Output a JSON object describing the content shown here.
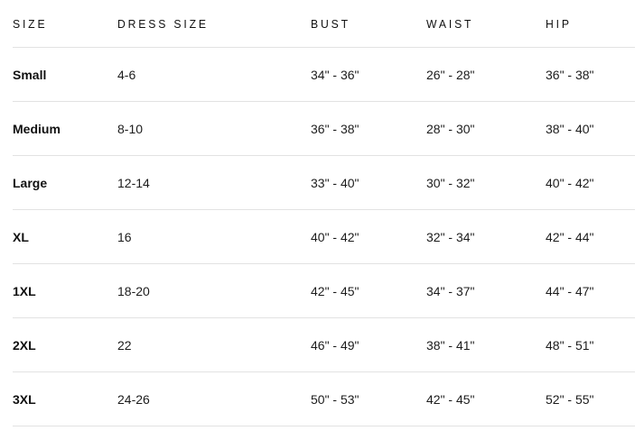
{
  "table": {
    "title": "size-chart",
    "colors": {
      "background": "#ffffff",
      "divider": "#e2e2e2",
      "header_text": "#111111",
      "body_text": "#1c1c1c"
    },
    "columns": {
      "size": "SIZE",
      "dress_size": "DRESS SIZE",
      "bust": "BUST",
      "waist": "WAIST",
      "hip": "HIP"
    },
    "rows": [
      {
        "size": "Small",
        "dress_size": "4-6",
        "bust": "34\" - 36\"",
        "waist": "26\" - 28\"",
        "hip": "36\" - 38\""
      },
      {
        "size": "Medium",
        "dress_size": "8-10",
        "bust": "36\" - 38\"",
        "waist": "28\" - 30\"",
        "hip": "38\" - 40\""
      },
      {
        "size": "Large",
        "dress_size": "12-14",
        "bust": "33\" - 40\"",
        "waist": "30\" - 32\"",
        "hip": "40\" - 42\""
      },
      {
        "size": "XL",
        "dress_size": "16",
        "bust": "40\" - 42\"",
        "waist": "32\" - 34\"",
        "hip": "42\" - 44\""
      },
      {
        "size": "1XL",
        "dress_size": "18-20",
        "bust": "42\" - 45\"",
        "waist": "34\" - 37\"",
        "hip": "44\" - 47\""
      },
      {
        "size": "2XL",
        "dress_size": "22",
        "bust": "46\" - 49\"",
        "waist": "38\" - 41\"",
        "hip": "48\" - 51\""
      },
      {
        "size": "3XL",
        "dress_size": "24-26",
        "bust": "50\" - 53\"",
        "waist": "42\" - 45\"",
        "hip": "52\" - 55\""
      }
    ]
  }
}
